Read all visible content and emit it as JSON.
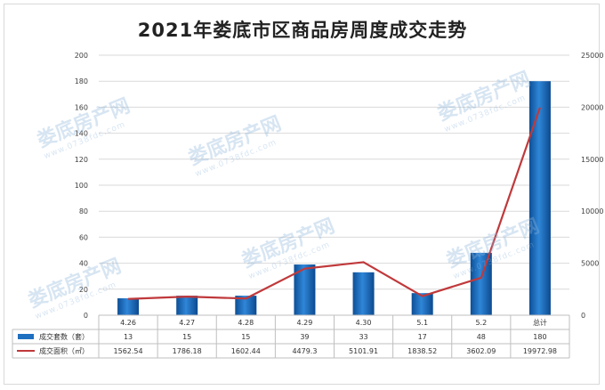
{
  "chart_data": {
    "type": "bar+line",
    "title": "2021年娄底市区商品房周度成交走势",
    "categories": [
      "4.26",
      "4.27",
      "4.28",
      "4.29",
      "4.30",
      "5.1",
      "5.2",
      "总计"
    ],
    "left_axis": {
      "ylim": [
        0,
        200
      ],
      "ticks": [
        0,
        20,
        40,
        60,
        80,
        100,
        120,
        140,
        160,
        180,
        200
      ]
    },
    "right_axis": {
      "ylim": [
        0,
        25000
      ],
      "ticks": [
        0,
        5000,
        10000,
        15000,
        20000,
        25000
      ]
    },
    "series": [
      {
        "name": "成交套数（套）",
        "type": "bar",
        "axis": "left",
        "color": "#1f6fc0",
        "values": [
          13,
          15,
          15,
          39,
          33,
          17,
          48,
          180
        ],
        "labels": [
          "13",
          "15",
          "15",
          "39",
          "33",
          "17",
          "48",
          "180"
        ]
      },
      {
        "name": "成交面积（㎡）",
        "type": "line",
        "axis": "right",
        "color": "#c0393b",
        "values": [
          1562.54,
          1786.18,
          1602.44,
          4479.3,
          5101.91,
          1838.52,
          3602.09,
          19972.98
        ],
        "labels": [
          "1562.54",
          "1786.18",
          "1602.44",
          "4479.3",
          "5101.91",
          "1838.52",
          "3602.09",
          "19972.98"
        ]
      }
    ],
    "grid": true,
    "legend": "data-table-bottom"
  },
  "watermark": {
    "text": "娄底房产网",
    "sub": "www.0738fdc.com"
  }
}
